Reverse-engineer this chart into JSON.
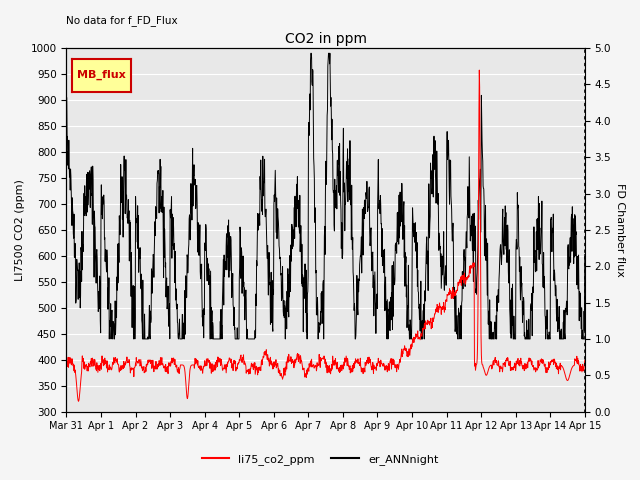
{
  "title": "CO2 in ppm",
  "top_left_text": "No data for f_FD_Flux",
  "ylabel_left": "LI7500 CO2 (ppm)",
  "ylabel_right": "FD Chamber flux",
  "ylim_left": [
    300,
    1000
  ],
  "ylim_right": [
    0.0,
    5.0
  ],
  "yticks_left": [
    300,
    350,
    400,
    450,
    500,
    550,
    600,
    650,
    700,
    750,
    800,
    850,
    900,
    950,
    1000
  ],
  "yticks_right": [
    0.0,
    0.5,
    1.0,
    1.5,
    2.0,
    2.5,
    3.0,
    3.5,
    4.0,
    4.5,
    5.0
  ],
  "legend_label_red": "li75_co2_ppm",
  "legend_label_black": "er_ANNnight",
  "legend_box_label": "MB_flux",
  "legend_box_color": "#ffff99",
  "legend_box_edge": "#cc0000",
  "line_color_red": "#ff0000",
  "line_color_black": "#000000",
  "background_color": "#e8e8e8",
  "grid_color": "#ffffff",
  "fig_width": 6.4,
  "fig_height": 4.8,
  "dpi": 100,
  "date_labels": [
    "Mar 31",
    "Apr 1",
    "Apr 2",
    "Apr 3",
    "Apr 4",
    "Apr 5",
    "Apr 6",
    "Apr 7",
    "Apr 8",
    "Apr 9",
    "Apr 10",
    "Apr 11",
    "Apr 12",
    "Apr 13",
    "Apr 14",
    "Apr 15"
  ],
  "date_ticks": [
    0,
    1,
    2,
    3,
    4,
    5,
    6,
    7,
    8,
    9,
    10,
    11,
    12,
    13,
    14,
    15
  ]
}
